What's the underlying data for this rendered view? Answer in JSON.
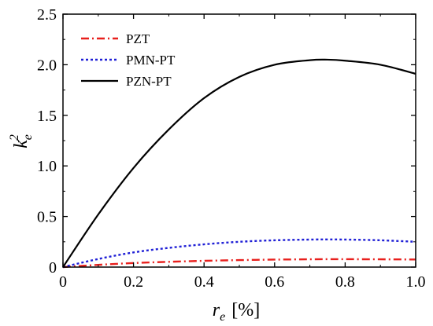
{
  "chart_data": {
    "type": "line",
    "xlabel_symbol": "r",
    "xlabel_subscript": "e",
    "xlabel_unit": "[%]",
    "ylabel_symbol": "k",
    "ylabel_subscript": "e",
    "ylabel_superscript": "2",
    "xlim": [
      0,
      1.0
    ],
    "ylim": [
      0,
      2.5
    ],
    "x_ticks": [
      "0",
      "0.2",
      "0.4",
      "0.6",
      "0.8",
      "1.0"
    ],
    "y_ticks": [
      "0",
      "0.5",
      "1.0",
      "1.5",
      "2.0",
      "2.5"
    ],
    "legend_position": "top-left",
    "grid": false,
    "x": [
      0,
      0.1,
      0.2,
      0.3,
      0.4,
      0.5,
      0.6,
      0.7,
      0.75,
      0.8,
      0.9,
      1.0
    ],
    "series": [
      {
        "name": "PZT",
        "color": "#e8201d",
        "style": "dash-dot",
        "values": [
          0,
          0.022,
          0.04,
          0.052,
          0.062,
          0.069,
          0.074,
          0.077,
          0.078,
          0.078,
          0.077,
          0.075
        ]
      },
      {
        "name": "PMN-PT",
        "color": "#1f1fd6",
        "style": "dotted",
        "values": [
          0,
          0.08,
          0.145,
          0.19,
          0.225,
          0.25,
          0.265,
          0.272,
          0.273,
          0.272,
          0.265,
          0.25
        ]
      },
      {
        "name": "PZN-PT",
        "color": "#000000",
        "style": "solid",
        "values": [
          0,
          0.52,
          0.98,
          1.36,
          1.67,
          1.88,
          2.0,
          2.045,
          2.05,
          2.04,
          2.0,
          1.91
        ]
      }
    ]
  }
}
